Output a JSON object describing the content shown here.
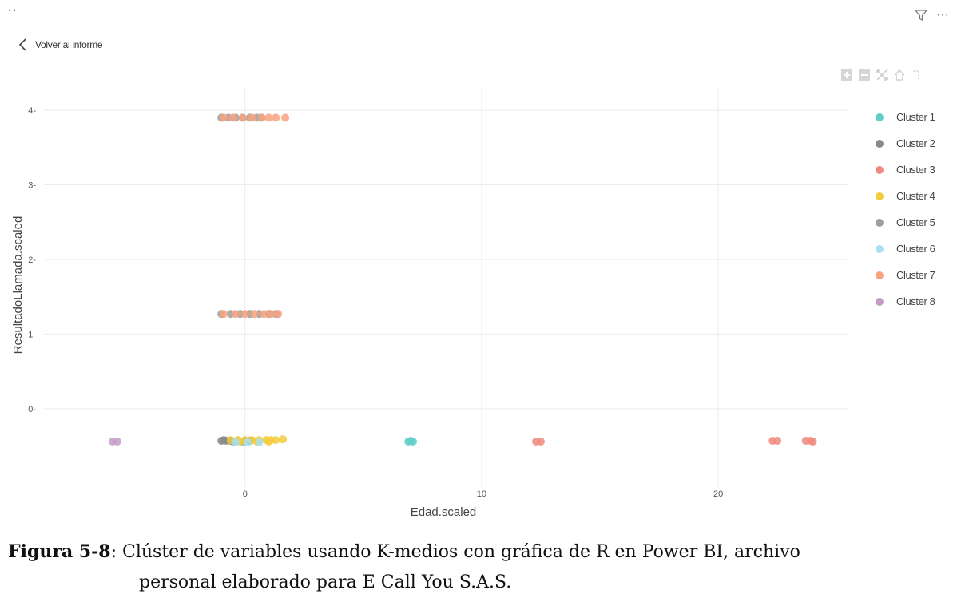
{
  "header": {
    "top_mark": "⁴ •",
    "back_label": "Volver al informe",
    "filter_icon": "filter-icon",
    "more_label": "···"
  },
  "modebar_icons": [
    "zoom-in-icon",
    "zoom-out-icon",
    "autoscale-icon",
    "home-icon",
    "spike-lines-icon"
  ],
  "colors": {
    "cluster1": "#5fcfc9",
    "cluster2": "#8a8a8a",
    "cluster3": "#f08a7e",
    "cluster4": "#f2cc3c",
    "cluster5": "#9e9e9e",
    "cluster6": "#a9dff0",
    "cluster7": "#f8a27e",
    "cluster8": "#c39cc6",
    "gridline": "#ebebeb"
  },
  "chart_data": {
    "type": "scatter",
    "xlabel": "Edad.scaled",
    "ylabel": "ResultadoLlamada.scaled",
    "xlim": [
      -8.5,
      25.5
    ],
    "ylim": [
      -1.05,
      4.3
    ],
    "x_ticks": [
      0,
      10,
      20
    ],
    "y_ticks": [
      0,
      1,
      2,
      3,
      4
    ],
    "grid": true,
    "legend_position": "right",
    "series": [
      {
        "name": "Cluster 1",
        "points": [
          [
            6.9,
            -0.44
          ],
          [
            7.1,
            -0.44
          ],
          [
            7.0,
            -0.43
          ],
          [
            -0.1,
            -0.45
          ]
        ]
      },
      {
        "name": "Cluster 2",
        "points": [
          [
            -1.0,
            -0.43
          ],
          [
            -0.8,
            -0.43
          ],
          [
            -0.6,
            -0.43
          ],
          [
            -0.3,
            -0.43
          ],
          [
            0.0,
            -0.43
          ],
          [
            0.2,
            -0.43
          ],
          [
            -0.9,
            -0.42
          ],
          [
            -0.5,
            -0.44
          ]
        ]
      },
      {
        "name": "Cluster 3",
        "points": [
          [
            12.3,
            -0.44
          ],
          [
            12.5,
            -0.44
          ],
          [
            22.3,
            -0.43
          ],
          [
            22.5,
            -0.43
          ],
          [
            23.7,
            -0.43
          ],
          [
            23.9,
            -0.43
          ],
          [
            24.0,
            -0.44
          ]
        ]
      },
      {
        "name": "Cluster 4",
        "points": [
          [
            -0.6,
            -0.42
          ],
          [
            -0.3,
            -0.42
          ],
          [
            0.0,
            -0.42
          ],
          [
            0.3,
            -0.42
          ],
          [
            0.6,
            -0.42
          ],
          [
            0.9,
            -0.42
          ],
          [
            1.1,
            -0.42
          ],
          [
            1.3,
            -0.42
          ],
          [
            1.6,
            -0.41
          ],
          [
            -0.2,
            -0.44
          ],
          [
            0.5,
            -0.44
          ],
          [
            1.0,
            -0.44
          ]
        ]
      },
      {
        "name": "Cluster 5",
        "points": [
          [
            -1.0,
            3.9
          ],
          [
            -0.7,
            3.9
          ],
          [
            -0.4,
            3.9
          ],
          [
            -0.1,
            3.9
          ],
          [
            0.2,
            3.9
          ],
          [
            0.5,
            3.9
          ],
          [
            0.7,
            3.9
          ],
          [
            -1.0,
            1.27
          ],
          [
            -0.6,
            1.27
          ],
          [
            -0.2,
            1.27
          ],
          [
            0.2,
            1.27
          ],
          [
            0.6,
            1.27
          ],
          [
            1.0,
            1.27
          ],
          [
            1.3,
            1.27
          ]
        ]
      },
      {
        "name": "Cluster 6",
        "points": [
          [
            -0.4,
            -0.45
          ],
          [
            0.1,
            -0.45
          ],
          [
            0.6,
            -0.45
          ]
        ]
      },
      {
        "name": "Cluster 7",
        "points": [
          [
            -0.9,
            3.9
          ],
          [
            -0.5,
            3.9
          ],
          [
            -0.1,
            3.9
          ],
          [
            0.3,
            3.9
          ],
          [
            0.7,
            3.9
          ],
          [
            1.0,
            3.9
          ],
          [
            1.3,
            3.9
          ],
          [
            1.7,
            3.9
          ],
          [
            -0.9,
            1.27
          ],
          [
            -0.4,
            1.27
          ],
          [
            0.0,
            1.27
          ],
          [
            0.4,
            1.27
          ],
          [
            0.8,
            1.27
          ],
          [
            1.1,
            1.27
          ],
          [
            1.4,
            1.27
          ]
        ]
      },
      {
        "name": "Cluster 8",
        "points": [
          [
            -5.6,
            -0.44
          ],
          [
            -5.4,
            -0.44
          ]
        ]
      }
    ]
  },
  "caption": {
    "label": "Figura 5-8",
    "line1": ": Clúster de variables usando K-medios con gráfica de R en Power BI, archivo",
    "line2": "personal elaborado para E Call You S.A.S."
  }
}
